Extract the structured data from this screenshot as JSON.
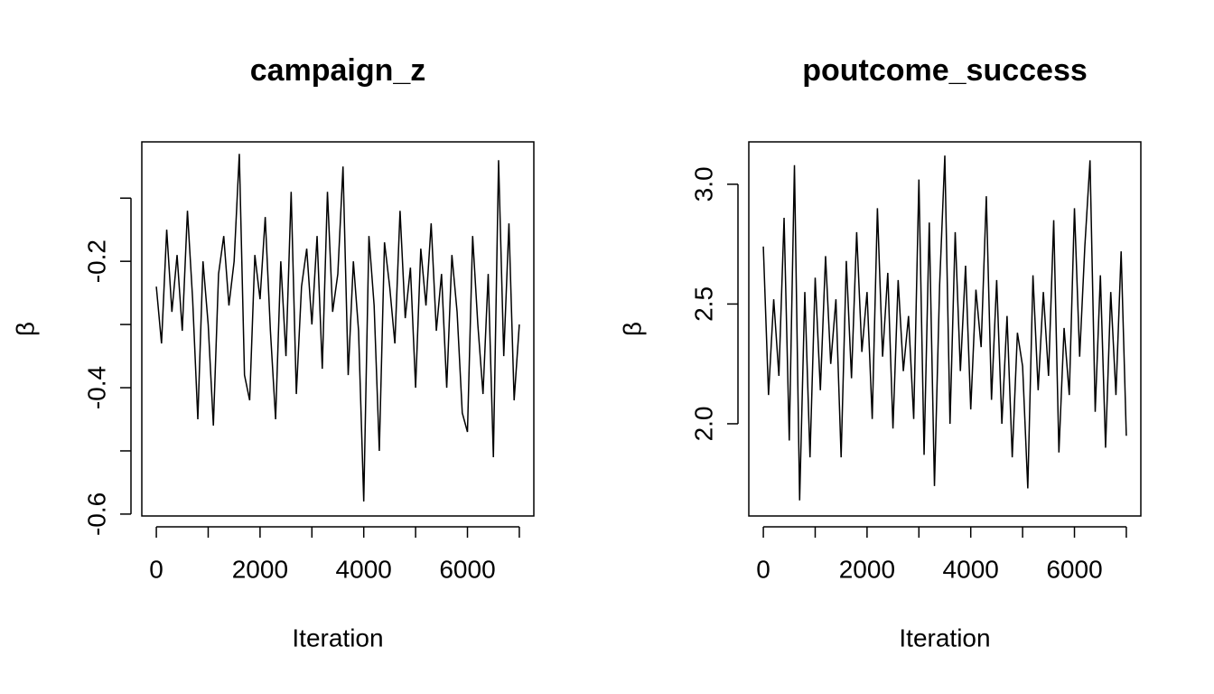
{
  "chart_data": [
    {
      "type": "line",
      "title": "campaign_z",
      "xlabel": "Iteration",
      "ylabel": "β",
      "x": [
        0,
        100,
        200,
        300,
        400,
        500,
        600,
        700,
        800,
        900,
        1000,
        1100,
        1200,
        1300,
        1400,
        1500,
        1600,
        1700,
        1800,
        1900,
        2000,
        2100,
        2200,
        2300,
        2400,
        2500,
        2600,
        2700,
        2800,
        2900,
        3000,
        3100,
        3200,
        3300,
        3400,
        3500,
        3600,
        3700,
        3800,
        3900,
        4000,
        4100,
        4200,
        4300,
        4400,
        4500,
        4600,
        4700,
        4800,
        4900,
        5000,
        5100,
        5200,
        5300,
        5400,
        5500,
        5600,
        5700,
        5800,
        5900,
        6000,
        6100,
        6200,
        6300,
        6400,
        6500,
        6600,
        6700,
        6800,
        6900,
        7000
      ],
      "values": [
        -0.24,
        -0.33,
        -0.15,
        -0.28,
        -0.19,
        -0.31,
        -0.12,
        -0.26,
        -0.45,
        -0.2,
        -0.3,
        -0.46,
        -0.22,
        -0.16,
        -0.27,
        -0.2,
        -0.03,
        -0.38,
        -0.42,
        -0.19,
        -0.26,
        -0.13,
        -0.31,
        -0.45,
        -0.2,
        -0.35,
        -0.09,
        -0.41,
        -0.24,
        -0.18,
        -0.3,
        -0.16,
        -0.37,
        -0.09,
        -0.28,
        -0.22,
        -0.05,
        -0.38,
        -0.2,
        -0.31,
        -0.58,
        -0.16,
        -0.27,
        -0.5,
        -0.17,
        -0.24,
        -0.33,
        -0.12,
        -0.29,
        -0.21,
        -0.4,
        -0.18,
        -0.27,
        -0.14,
        -0.31,
        -0.22,
        -0.4,
        -0.19,
        -0.28,
        -0.44,
        -0.47,
        -0.16,
        -0.3,
        -0.41,
        -0.22,
        -0.51,
        -0.04,
        -0.35,
        -0.14,
        -0.42,
        -0.3
      ],
      "color": "#000000",
      "xlim": [
        -280,
        7280
      ],
      "xticks": [
        0,
        1000,
        2000,
        3000,
        4000,
        5000,
        6000,
        7000
      ],
      "ylim": [
        -0.603,
        -0.011
      ],
      "yticks": [
        -0.6,
        -0.5,
        -0.4,
        -0.3,
        -0.2,
        -0.1
      ]
    },
    {
      "type": "line",
      "title": "poutcome_success",
      "xlabel": "Iteration",
      "ylabel": "β",
      "x": [
        0,
        100,
        200,
        300,
        400,
        500,
        600,
        700,
        800,
        900,
        1000,
        1100,
        1200,
        1300,
        1400,
        1500,
        1600,
        1700,
        1800,
        1900,
        2000,
        2100,
        2200,
        2300,
        2400,
        2500,
        2600,
        2700,
        2800,
        2900,
        3000,
        3100,
        3200,
        3300,
        3400,
        3500,
        3600,
        3700,
        3800,
        3900,
        4000,
        4100,
        4200,
        4300,
        4400,
        4500,
        4600,
        4700,
        4800,
        4900,
        5000,
        5100,
        5200,
        5300,
        5400,
        5500,
        5600,
        5700,
        5800,
        5900,
        6000,
        6100,
        6200,
        6300,
        6400,
        6500,
        6600,
        6700,
        6800,
        6900,
        7000
      ],
      "values": [
        2.74,
        2.12,
        2.52,
        2.2,
        2.86,
        1.93,
        3.08,
        1.68,
        2.55,
        1.86,
        2.61,
        2.14,
        2.7,
        2.25,
        2.52,
        1.86,
        2.68,
        2.19,
        2.8,
        2.3,
        2.55,
        2.02,
        2.9,
        2.28,
        2.63,
        1.98,
        2.6,
        2.22,
        2.45,
        2.02,
        3.02,
        1.87,
        2.84,
        1.74,
        2.58,
        3.12,
        2.0,
        2.8,
        2.22,
        2.66,
        2.06,
        2.56,
        2.32,
        2.95,
        2.1,
        2.6,
        2.0,
        2.45,
        1.86,
        2.38,
        2.24,
        1.73,
        2.62,
        2.14,
        2.55,
        2.2,
        2.85,
        1.88,
        2.4,
        2.12,
        2.9,
        2.28,
        2.74,
        3.1,
        2.05,
        2.62,
        1.9,
        2.55,
        2.12,
        2.72,
        1.95
      ],
      "color": "#000000",
      "xlim": [
        -280,
        7280
      ],
      "xticks": [
        0,
        1000,
        2000,
        3000,
        4000,
        5000,
        6000,
        7000
      ],
      "ylim": [
        1.615,
        3.177
      ],
      "yticks": [
        {
          "value": 2,
          "label": "2.0"
        },
        {
          "value": 2.5,
          "label": "2.5"
        },
        {
          "value": 3,
          "label": "3.0"
        }
      ]
    }
  ]
}
